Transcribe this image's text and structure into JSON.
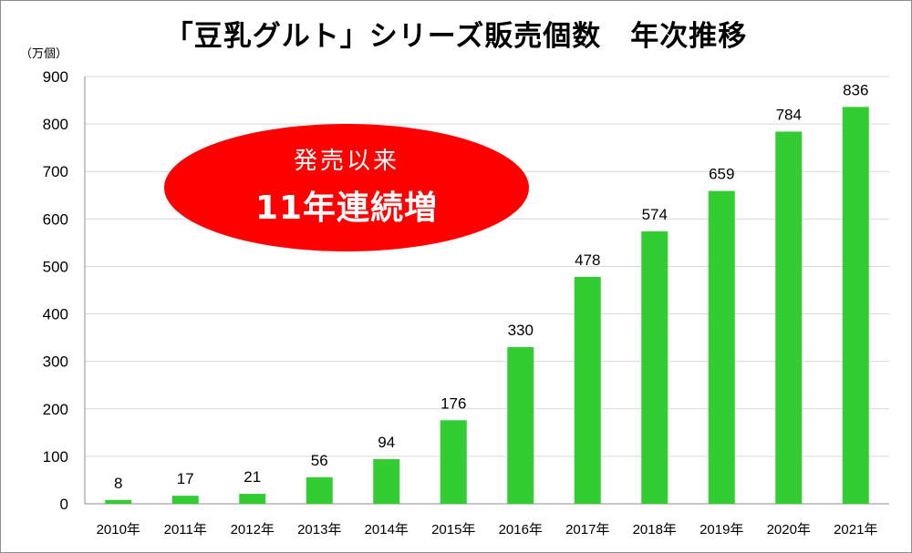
{
  "chart_data": {
    "type": "bar",
    "title": "「豆乳グルト」シリーズ販売個数　年次推移",
    "ylabel": "（万個）",
    "categories": [
      "2010年",
      "2011年",
      "2012年",
      "2013年",
      "2014年",
      "2015年",
      "2016年",
      "2017年",
      "2018年",
      "2019年",
      "2020年",
      "2021年"
    ],
    "values": [
      8,
      17,
      21,
      56,
      94,
      176,
      330,
      478,
      574,
      659,
      784,
      836
    ],
    "ylim": [
      0,
      900
    ],
    "yticks": [
      0,
      100,
      200,
      300,
      400,
      500,
      600,
      700,
      800,
      900
    ],
    "grid": true,
    "bar_color": "#33cc33",
    "grid_color": "#d9d9d9",
    "annotation": {
      "line1": "発売以来",
      "line2": "11年連続増",
      "color": "#ff0000"
    }
  }
}
